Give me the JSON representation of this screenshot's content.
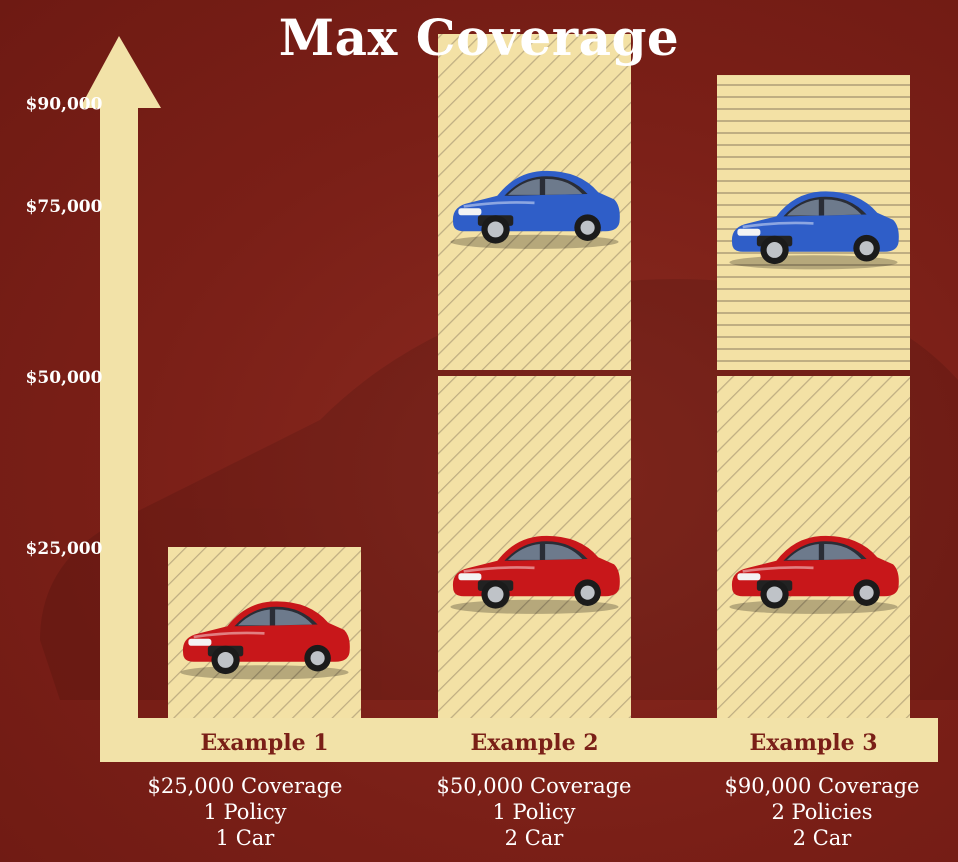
{
  "colors": {
    "background": "#7a1f17",
    "axis": "#f2e2a8",
    "bar_fill": "#f3e1a5",
    "bar_stripe": "#bfae82",
    "label_text": "#7a1f17",
    "red_car": "#c8171a",
    "blue_car": "#2f5ec8"
  },
  "chart_data": {
    "type": "bar",
    "title": "Max Coverage",
    "ylim": [
      0,
      100000
    ],
    "yticks": [
      {
        "label": "$25,000",
        "value": 25000
      },
      {
        "label": "$50,000",
        "value": 50000
      },
      {
        "label": "$75,000",
        "value": 75000
      },
      {
        "label": "$90,000",
        "value": 90000
      }
    ],
    "categories": [
      "Example 1",
      "Example 2",
      "Example 3"
    ],
    "stacks": [
      {
        "category": "Example 1",
        "segments": [
          {
            "value": 25000,
            "icon": "red-car-icon",
            "pattern": "diagonal"
          }
        ]
      },
      {
        "category": "Example 2",
        "segments": [
          {
            "value": 50000,
            "icon": "red-car-icon",
            "pattern": "diagonal"
          },
          {
            "value": 50000,
            "icon": "blue-car-icon",
            "pattern": "diagonal"
          }
        ]
      },
      {
        "category": "Example 3",
        "segments": [
          {
            "value": 50000,
            "icon": "red-car-icon",
            "pattern": "diagonal"
          },
          {
            "value": 44000,
            "icon": "blue-car-icon",
            "pattern": "horizontal"
          }
        ]
      }
    ],
    "captions": [
      [
        "$25,000 Coverage",
        "1 Policy",
        "1 Car"
      ],
      [
        "$50,000 Coverage",
        "1 Policy",
        "2 Car"
      ],
      [
        "$90,000 Coverage",
        "2 Policies",
        "2 Car"
      ]
    ],
    "grid": false,
    "legend": "none"
  }
}
